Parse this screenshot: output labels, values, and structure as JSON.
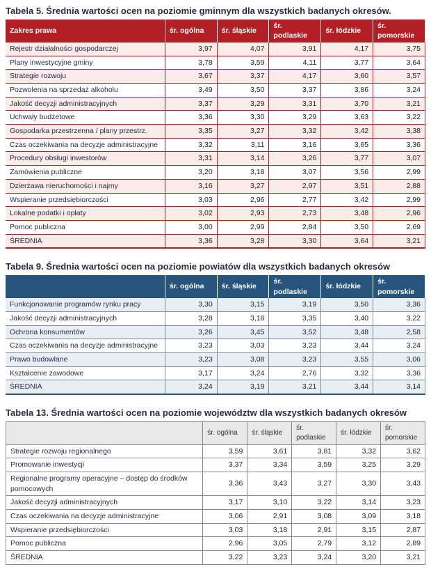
{
  "table5": {
    "title": "Tabela 5. Średnia wartości ocen na poziomie gminnym dla wszystkich badanych okresów.",
    "header_bg": "#b31f24",
    "stripe_bg": "#f9ece8",
    "columns": [
      "Zakres prawa",
      "śr. ogólna",
      "śr. śląskie",
      "śr. podlaskie",
      "śr. łódzkie",
      "śr. pomorskie"
    ],
    "rows": [
      [
        "Rejestr działalności gospodarczej",
        "3,97",
        "4,07",
        "3,91",
        "4,17",
        "3,75"
      ],
      [
        "Plany inwestycyjne gminy",
        "3,78",
        "3,59",
        "4,11",
        "3,77",
        "3,64"
      ],
      [
        "Strategie rozwoju",
        "3,67",
        "3,37",
        "4,17",
        "3,60",
        "3,57"
      ],
      [
        "Pozwolenia na sprzedaż alkoholu",
        "3,49",
        "3,50",
        "3,37",
        "3,86",
        "3,24"
      ],
      [
        "Jakość decyzji administracyjnych",
        "3,37",
        "3,29",
        "3,31",
        "3,70",
        "3,21"
      ],
      [
        "Uchwały budżetowe",
        "3,36",
        "3,30",
        "3,29",
        "3,63",
        "3,22"
      ],
      [
        "Gospodarka przestrzenna / plany przestrz.",
        "3,35",
        "3,27",
        "3,32",
        "3,42",
        "3,38"
      ],
      [
        "Czas oczekiwania na decyzje administracyjne",
        "3,32",
        "3,11",
        "3,16",
        "3,65",
        "3,36"
      ],
      [
        "Procedury obsługi inwestorów",
        "3,31",
        "3,14",
        "3,26",
        "3,77",
        "3,07"
      ],
      [
        "Zamówienia publiczne",
        "3,20",
        "3,18",
        "3,07",
        "3,56",
        "2,99"
      ],
      [
        "Dzierżawa nieruchomości i najmy",
        "3,16",
        "3,27",
        "2,97",
        "3,51",
        "2,88"
      ],
      [
        "Wspieranie przedsiębiorczości",
        "3,03",
        "2,96",
        "2,77",
        "3,42",
        "2,99"
      ],
      [
        "Lokalne podatki i opłaty",
        "3,02",
        "2,93",
        "2,73",
        "3,48",
        "2,96"
      ],
      [
        "Pomoc publiczna",
        "3,00",
        "2,99",
        "2,84",
        "3,50",
        "2,69"
      ],
      [
        "ŚREDNIA",
        "3,36",
        "3,28",
        "3,30",
        "3,64",
        "3,21"
      ]
    ]
  },
  "table9": {
    "title": "Tabela 9. Średnia wartości ocen na poziomie powiatów dla wszystkich badanych okresów",
    "header_bg": "#26547c",
    "stripe_bg": "#e9eef5",
    "columns": [
      "",
      "śr. ogólna",
      "śr. śląskie",
      "śr. podlaskie",
      "śr. łódzkie",
      "śr. pomorskie"
    ],
    "rows": [
      [
        "Funkcjonowanie programów rynku pracy",
        "3,30",
        "3,15",
        "3,19",
        "3,50",
        "3,36"
      ],
      [
        "Jakość decyzji administracyjnych",
        "3,28",
        "3,18",
        "3,35",
        "3,40",
        "3,22"
      ],
      [
        "Ochrona konsumentów",
        "3,26",
        "3,45",
        "3,52",
        "3,48",
        "2,58"
      ],
      [
        "Czas oczekiwania na decyzje administracyjne",
        "3,23",
        "3,03",
        "3,23",
        "3,44",
        "3,24"
      ],
      [
        "Prawo budowlane",
        "3,23",
        "3,08",
        "3,23",
        "3,55",
        "3,06"
      ],
      [
        "Kształcenie zawodowe",
        "3,17",
        "3,24",
        "2,76",
        "3,32",
        "3,36"
      ],
      [
        "ŚREDNIA",
        "3,24",
        "3,19",
        "3,21",
        "3,44",
        "3,14"
      ]
    ]
  },
  "table13": {
    "title": "Tabela 13. Średnia wartości ocen na poziomie województw dla wszystkich badanych okresów",
    "header_bg": "#e8e8e8",
    "columns": [
      "",
      "śr. ogólna",
      "śr. śląskie",
      "śr. podlaskie",
      "śr. łódzkie",
      "śr. pomorskie"
    ],
    "rows": [
      [
        "Strategie rozwoju regionalnego",
        "3,59",
        "3,61",
        "3,81",
        "3,32",
        "3,62"
      ],
      [
        "Promowanie inwestycji",
        "3,37",
        "3,34",
        "3,59",
        "3,25",
        "3,29"
      ],
      [
        "Regionalne programy operacyjne – dostęp do środków pomocowych",
        "3,36",
        "3,43",
        "3,27",
        "3,30",
        "3,43"
      ],
      [
        "Jakość decyzji administracyjnych",
        "3,17",
        "3,10",
        "3,22",
        "3,14",
        "3,23"
      ],
      [
        "Czas oczekiwania na decyzje administracyjne",
        "3,06",
        "2,91",
        "3,08",
        "3,09",
        "3,18"
      ],
      [
        "Wspieranie przedsiębiorczości",
        "3,03",
        "3,18",
        "2,91",
        "3,15",
        "2,87"
      ],
      [
        "Pomoc publiczna",
        "2,96",
        "3,05",
        "2,79",
        "3,12",
        "2,89"
      ],
      [
        "ŚREDNIA",
        "3,22",
        "3,23",
        "3,24",
        "3,20",
        "3,21"
      ]
    ]
  }
}
